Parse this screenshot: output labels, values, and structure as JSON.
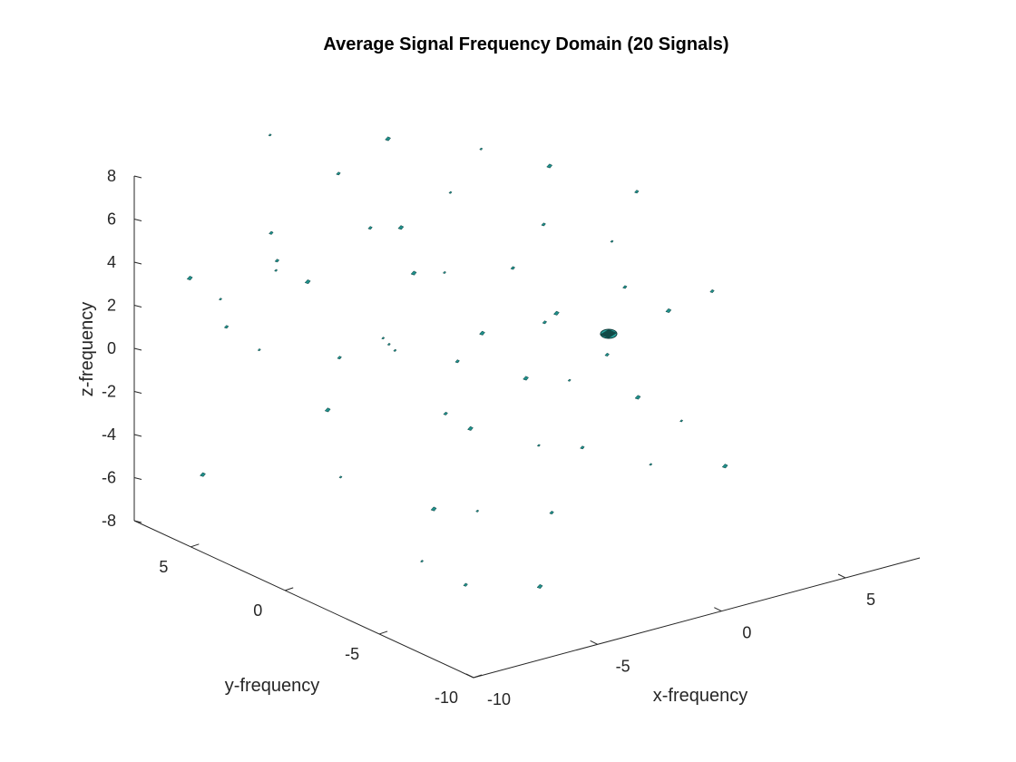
{
  "chart_data": {
    "type": "scatter",
    "variant": "3d-isosurface",
    "title": "Average Signal Frequency Domain (20 Signals)",
    "xlabel": "x-frequency",
    "ylabel": "y-frequency",
    "zlabel": "z-frequency",
    "xlim": [
      -10,
      8
    ],
    "ylim": [
      -10,
      8
    ],
    "zlim": [
      -8,
      8
    ],
    "x_ticks": [
      "-10",
      "-5",
      "0",
      "5"
    ],
    "y_ticks": [
      "-10",
      "-5",
      "0",
      "5"
    ],
    "z_ticks": [
      "-8",
      "-6",
      "-4",
      "-2",
      "0",
      "2",
      "4",
      "6",
      "8"
    ],
    "grid": false,
    "surface_color": "#1f8f8a",
    "peak_color": "#2aa6a0",
    "peak": {
      "x": 0,
      "y": 0,
      "z": 0
    },
    "fragments": [
      [
        -3,
        7,
        8
      ],
      [
        -6,
        3,
        6
      ],
      [
        -7,
        6,
        3
      ],
      [
        -5,
        7,
        1
      ],
      [
        -4,
        8,
        -1
      ],
      [
        -8,
        4,
        -5
      ],
      [
        -2,
        8,
        1
      ],
      [
        -5,
        4,
        4
      ],
      [
        -3,
        5,
        2
      ],
      [
        -8,
        1,
        2
      ],
      [
        -4,
        2,
        0
      ],
      [
        -6,
        0,
        -1
      ],
      [
        -7,
        -2,
        -3
      ],
      [
        -2,
        3,
        5
      ],
      [
        -1,
        2,
        3
      ],
      [
        -3,
        1,
        1
      ],
      [
        -2,
        -1,
        -2
      ],
      [
        -4,
        -3,
        -5
      ],
      [
        -6,
        -5,
        -6
      ],
      [
        -1,
        6,
        6
      ],
      [
        0,
        4,
        4
      ],
      [
        1,
        3,
        2
      ],
      [
        0,
        1,
        -1
      ],
      [
        -1,
        -1,
        -3
      ],
      [
        -3,
        -4,
        -5
      ],
      [
        -5,
        -6,
        -7
      ],
      [
        1,
        6,
        7
      ],
      [
        2,
        4,
        5
      ],
      [
        3,
        2,
        2
      ],
      [
        2,
        0,
        -2
      ],
      [
        1,
        -2,
        -4
      ],
      [
        0,
        -4,
        -6
      ],
      [
        -2,
        -6,
        -8
      ],
      [
        4,
        5,
        6
      ],
      [
        5,
        3,
        3
      ],
      [
        4,
        1,
        0
      ],
      [
        3,
        -1,
        -2
      ],
      [
        2,
        -3,
        -4
      ],
      [
        6,
        4,
        5
      ],
      [
        7,
        2,
        2
      ],
      [
        6,
        0,
        1
      ],
      [
        5,
        -2,
        -3
      ],
      [
        4,
        -4,
        -5
      ],
      [
        8,
        2,
        4
      ],
      [
        7,
        -1,
        0
      ],
      [
        6,
        -3,
        -4
      ],
      [
        8,
        -2,
        1
      ],
      [
        7,
        -4,
        -6
      ],
      [
        -2,
        2,
        0
      ],
      [
        2,
        -1,
        1
      ],
      [
        1,
        1,
        0
      ],
      [
        -1,
        3,
        -1
      ],
      [
        3,
        -3,
        0
      ]
    ]
  }
}
